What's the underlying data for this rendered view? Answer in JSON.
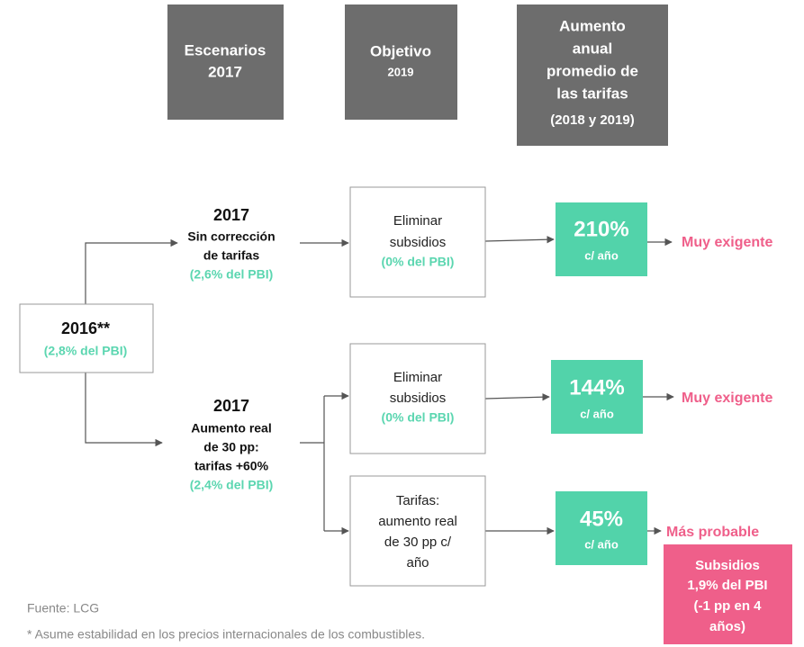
{
  "headers": [
    {
      "lines": [
        "Escenarios",
        "2017"
      ]
    },
    {
      "lines": [
        "Objetivo",
        "2019"
      ]
    },
    {
      "lines": [
        "Aumento",
        "anual",
        "promedio de",
        "las tarifas",
        "(2018 y 2019)"
      ]
    }
  ],
  "root": {
    "label": "2016**",
    "share": "(2,8% del PBI)"
  },
  "branches": [
    {
      "year": "2017",
      "lines": [
        "Sin corrección",
        "de tarifas"
      ],
      "share": "(2,6% del PBI)"
    },
    {
      "year": "2017",
      "lines": [
        "Aumento real",
        "de 30 pp:",
        "tarifas +60%"
      ],
      "share": "(2,4% del PBI)"
    }
  ],
  "objectives": [
    {
      "lines": [
        "Eliminar",
        "subsidios"
      ],
      "share": "(0% del PBI)"
    },
    {
      "lines": [
        "Eliminar",
        "subsidios"
      ],
      "share": "(0% del PBI)"
    },
    {
      "lines": [
        "Tarifas:",
        "aumento real",
        "de 30 pp c/",
        "año"
      ]
    }
  ],
  "results": [
    {
      "value": "210%",
      "unit": "c/ año"
    },
    {
      "value": "144%",
      "unit": "c/ año"
    },
    {
      "value": "45%",
      "unit": "c/ año"
    }
  ],
  "outcomes": [
    "Muy exigente",
    "Muy exigente",
    "Más probable"
  ],
  "note": {
    "lines": [
      "Subsidios",
      "1,9% del PBI",
      "(-1 pp en 4",
      "años)"
    ]
  },
  "footer": {
    "source": "Fuente: LCG",
    "footnote": "* Asume estabilidad en los precios internacionales de los combustibles."
  }
}
